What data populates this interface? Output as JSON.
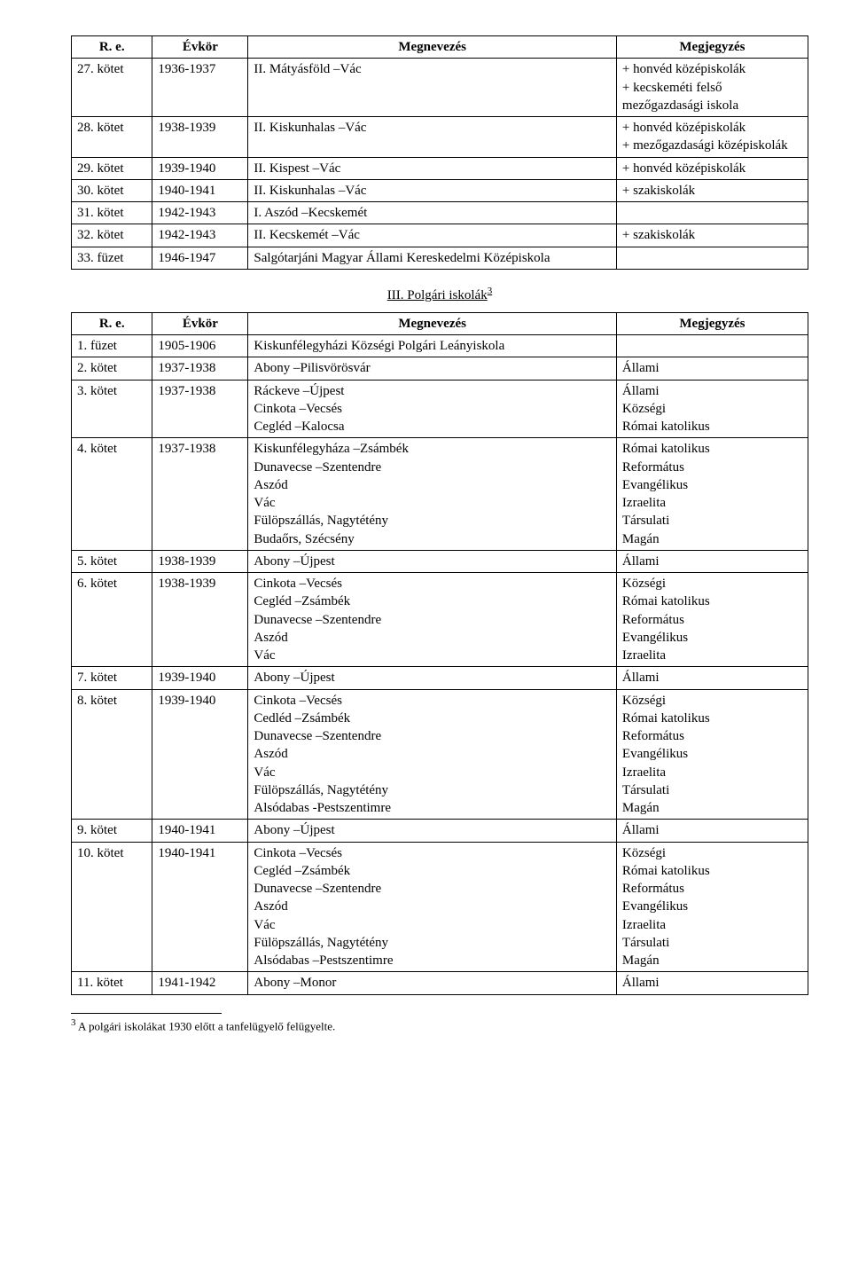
{
  "columns": {
    "re": "R. e.",
    "evkor": "Évkör",
    "megnevezes": "Megnevezés",
    "megjegyzes": "Megjegyzés"
  },
  "top_table": {
    "rows": [
      {
        "re": "27. kötet",
        "ev": "1936-1937",
        "meg": [
          "II. Mátyásföld –Vác"
        ],
        "megj": [
          "+ honvéd középiskolák",
          "+ kecskeméti felső mezőgazdasági iskola"
        ]
      },
      {
        "re": "28. kötet",
        "ev": "1938-1939",
        "meg": [
          "II. Kiskunhalas –Vác"
        ],
        "megj": [
          "+ honvéd középiskolák",
          "+ mezőgazdasági középiskolák"
        ]
      },
      {
        "re": "29. kötet",
        "ev": "1939-1940",
        "meg": [
          "II. Kispest –Vác"
        ],
        "megj": [
          "+ honvéd középiskolák"
        ]
      },
      {
        "re": "30. kötet",
        "ev": "1940-1941",
        "meg": [
          "II. Kiskunhalas –Vác"
        ],
        "megj": [
          "+ szakiskolák"
        ]
      },
      {
        "re": "31. kötet",
        "ev": "1942-1943",
        "meg": [
          "I. Aszód –Kecskemét"
        ],
        "megj": [
          ""
        ]
      },
      {
        "re": "32. kötet",
        "ev": "1942-1943",
        "meg": [
          "II. Kecskemét –Vác"
        ],
        "megj": [
          "+ szakiskolák"
        ]
      },
      {
        "re": "33. füzet",
        "ev": "1946-1947",
        "meg": [
          "Salgótarjáni Magyar Állami Kereskedelmi Középiskola"
        ],
        "megj": [
          ""
        ]
      }
    ]
  },
  "section_title": "III. Polgári iskolák",
  "section_footmark": "3",
  "bottom_table": {
    "rows": [
      {
        "re": "1. füzet",
        "ev": "1905-1906",
        "meg": [
          "Kiskunfélegyházi Községi Polgári Leányiskola"
        ],
        "megj": [
          ""
        ]
      },
      {
        "re": "2. kötet",
        "ev": "1937-1938",
        "meg": [
          "Abony –Pilisvörösvár"
        ],
        "megj": [
          "Állami"
        ]
      },
      {
        "re": "3. kötet",
        "ev": "1937-1938",
        "meg": [
          "Ráckeve –Újpest",
          "Cinkota –Vecsés",
          "Cegléd –Kalocsa"
        ],
        "megj": [
          "Állami",
          "Községi",
          "Római katolikus"
        ]
      },
      {
        "re": "4. kötet",
        "ev": "1937-1938",
        "meg": [
          "Kiskunfélegyháza –Zsámbék",
          "Dunavecse –Szentendre",
          "Aszód",
          "Vác",
          "Fülöpszállás, Nagytétény",
          "Budaőrs, Szécsény"
        ],
        "megj": [
          "Római katolikus",
          "Református",
          "Evangélikus",
          "Izraelita",
          "Társulati",
          "Magán"
        ]
      },
      {
        "re": "5. kötet",
        "ev": "1938-1939",
        "meg": [
          "Abony –Újpest"
        ],
        "megj": [
          "Állami"
        ]
      },
      {
        "re": "6. kötet",
        "ev": "1938-1939",
        "meg": [
          "Cinkota –Vecsés",
          "Cegléd –Zsámbék",
          "Dunavecse –Szentendre",
          "Aszód",
          "Vác"
        ],
        "megj": [
          "Községi",
          "Római katolikus",
          "Református",
          "Evangélikus",
          "Izraelita"
        ]
      },
      {
        "re": "7. kötet",
        "ev": "1939-1940",
        "meg": [
          "Abony –Újpest"
        ],
        "megj": [
          "Állami"
        ]
      },
      {
        "re": "8. kötet",
        "ev": "1939-1940",
        "meg": [
          "Cinkota –Vecsés",
          "Cedléd –Zsámbék",
          "Dunavecse –Szentendre",
          "Aszód",
          "Vác",
          "Fülöpszállás, Nagytétény",
          "Alsódabas -Pestszentimre"
        ],
        "megj": [
          "Községi",
          "Római katolikus",
          "Református",
          "Evangélikus",
          "Izraelita",
          "Társulati",
          "Magán"
        ]
      },
      {
        "re": "9. kötet",
        "ev": "1940-1941",
        "meg": [
          "Abony –Újpest"
        ],
        "megj": [
          "Állami"
        ]
      },
      {
        "re": "10. kötet",
        "ev": "1940-1941",
        "meg": [
          "Cinkota –Vecsés",
          "Cegléd –Zsámbék",
          "Dunavecse –Szentendre",
          "Aszód",
          "Vác",
          "Fülöpszállás, Nagytétény",
          "Alsódabas –Pestszentimre"
        ],
        "megj": [
          "Községi",
          "Római katolikus",
          "Református",
          "Evangélikus",
          "Izraelita",
          "Társulati",
          "Magán"
        ]
      },
      {
        "re": "11. kötet",
        "ev": "1941-1942",
        "meg": [
          "Abony –Monor"
        ],
        "megj": [
          "Állami"
        ]
      }
    ]
  },
  "footnote": {
    "mark": "3",
    "text": " A polgári iskolákat 1930 előtt a tanfelügyelő felügyelte."
  }
}
